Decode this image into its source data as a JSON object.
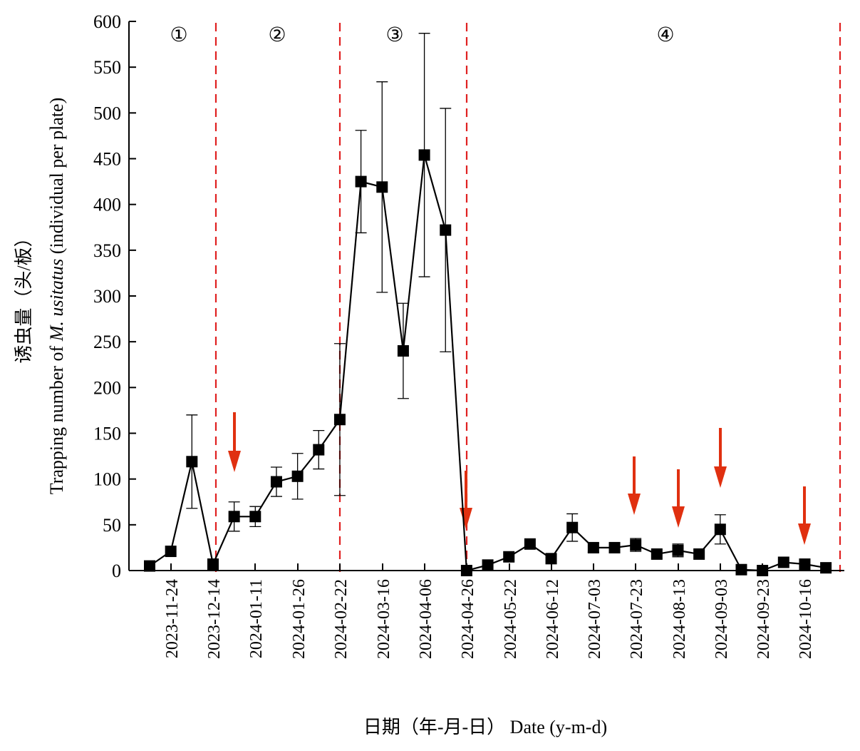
{
  "chart_data": {
    "type": "line",
    "xlabel": "日期（年-月-日） Date (y-m-d)",
    "ylabel_cn": "诱虫量（头/板）",
    "ylabel_prefix": "Trapping number of ",
    "ylabel_species": "M. usitatus",
    "ylabel_suffix": " (individual per plate)",
    "ylim": [
      0,
      600
    ],
    "yticks": [
      0,
      50,
      100,
      150,
      200,
      250,
      300,
      350,
      400,
      450,
      500,
      550,
      600
    ],
    "xticks": [
      "2023-11-24",
      "2023-12-14",
      "2024-01-11",
      "2024-01-26",
      "2024-02-22",
      "2024-03-16",
      "2024-04-06",
      "2024-04-26",
      "2024-05-22",
      "2024-06-12",
      "2024-07-03",
      "2024-07-23",
      "2024-08-13",
      "2024-09-03",
      "2024-09-23",
      "2024-10-16"
    ],
    "grid": false,
    "series": [
      {
        "color": "#000000",
        "marker": "square",
        "values": [
          5,
          21,
          119,
          7,
          59,
          59,
          97,
          103,
          132,
          165,
          425,
          419,
          240,
          454,
          372,
          0,
          6,
          15,
          29,
          13,
          47,
          25,
          25,
          28,
          18,
          22,
          18,
          45,
          1,
          0,
          9,
          7,
          3
        ],
        "errors": [
          0,
          0,
          51,
          0,
          16,
          11,
          16,
          25,
          21,
          83,
          56,
          115,
          52,
          133,
          133,
          0,
          0,
          0,
          0,
          0,
          15,
          5,
          0,
          7,
          0,
          7,
          0,
          16,
          0,
          0,
          0,
          0,
          0
        ]
      }
    ],
    "phase_labels": [
      "①",
      "②",
      "③",
      "④"
    ],
    "phase_boundary_color": "#e02020",
    "arrow_color": "#e03010",
    "arrow_dates": [
      "2023-12-25",
      "2024-04-26",
      "2024-07-23",
      "2024-08-13",
      "2024-09-03",
      "2024-10-16"
    ]
  }
}
